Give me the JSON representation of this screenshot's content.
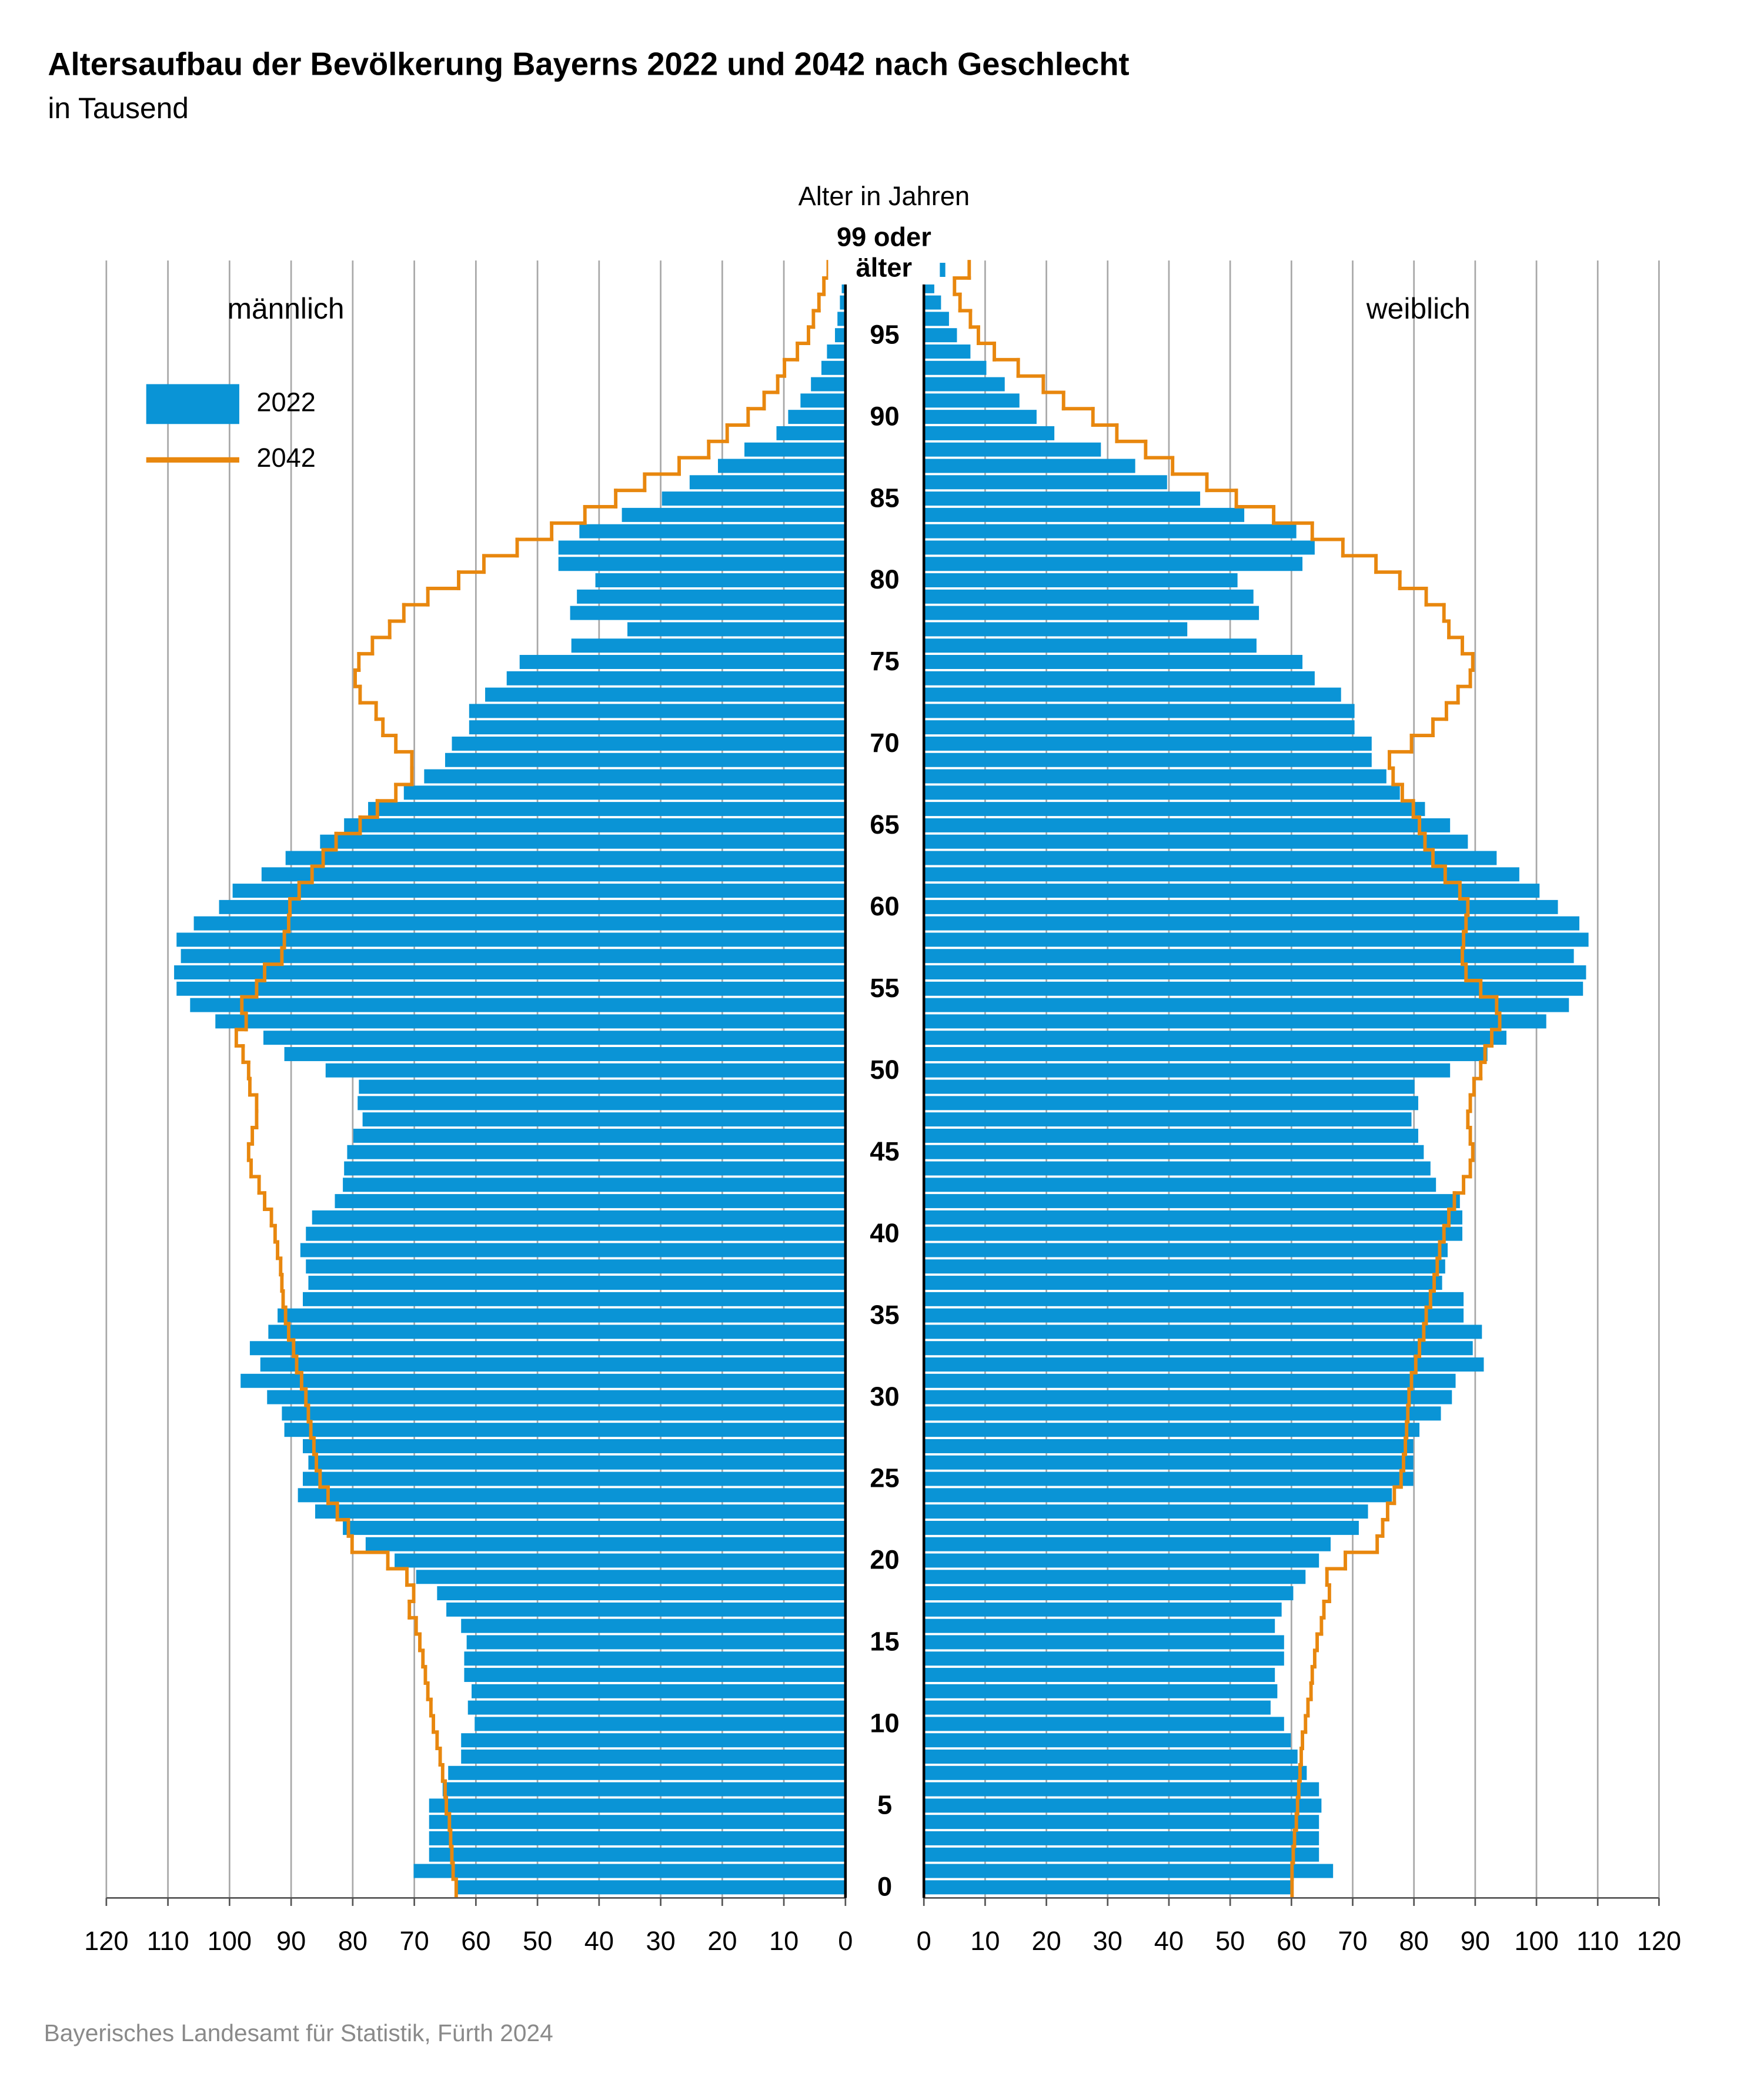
{
  "chart_data": {
    "type": "pyramid",
    "title": "Altersaufbau der Bevölkerung Bayerns 2022 und 2042 nach Geschlecht",
    "subtitle": "in Tausend",
    "y_axis_label": "Alter in Jahren",
    "left_label": "männlich",
    "right_label": "weiblich",
    "source": "Bayerisches Landesamt für Statistik, Fürth 2024",
    "xlim": [
      0,
      120
    ],
    "xticks": [
      0,
      10,
      20,
      30,
      40,
      50,
      60,
      70,
      80,
      90,
      100,
      110,
      120
    ],
    "grid": true,
    "categories": [
      "0",
      null,
      null,
      null,
      null,
      "5",
      null,
      null,
      null,
      null,
      "10",
      null,
      null,
      null,
      null,
      "15",
      null,
      null,
      null,
      null,
      "20",
      null,
      null,
      null,
      null,
      "25",
      null,
      null,
      null,
      null,
      "30",
      null,
      null,
      null,
      null,
      "35",
      null,
      null,
      null,
      null,
      "40",
      null,
      null,
      null,
      null,
      "45",
      null,
      null,
      null,
      null,
      "50",
      null,
      null,
      null,
      null,
      "55",
      null,
      null,
      null,
      null,
      "60",
      null,
      null,
      null,
      null,
      "65",
      null,
      null,
      null,
      null,
      "70",
      null,
      null,
      null,
      null,
      "75",
      null,
      null,
      null,
      null,
      "80",
      null,
      null,
      null,
      null,
      "85",
      null,
      null,
      null,
      null,
      "90",
      null,
      null,
      null,
      null,
      "95",
      null,
      null,
      null,
      "99 oder älter"
    ],
    "series": [
      {
        "name": "2022",
        "style": "bar",
        "color": "#0a94d6",
        "male": [
          63.2,
          70.1,
          67.6,
          67.6,
          67.6,
          67.6,
          65.4,
          64.5,
          62.4,
          62.4,
          60.2,
          61.3,
          60.7,
          61.9,
          61.9,
          61.5,
          62.4,
          64.8,
          66.3,
          69.7,
          73.2,
          77.9,
          81.6,
          86.1,
          88.9,
          88.1,
          87.2,
          88.1,
          91.1,
          91.5,
          93.9,
          98.2,
          95.0,
          96.7,
          93.7,
          92.2,
          88.1,
          87.2,
          87.6,
          88.5,
          87.6,
          86.6,
          82.9,
          81.6,
          81.4,
          80.9,
          79.9,
          78.4,
          79.2,
          79.0,
          84.4,
          91.1,
          94.5,
          102.3,
          106.4,
          108.6,
          109.0,
          107.9,
          108.6,
          105.8,
          101.7,
          99.5,
          94.8,
          90.9,
          85.3,
          81.4,
          77.5,
          71.7,
          68.4,
          65.0,
          63.9,
          61.1,
          61.1,
          58.5,
          55.0,
          52.9,
          44.5,
          35.4,
          44.7,
          43.6,
          40.6,
          46.6,
          46.6,
          43.2,
          36.3,
          29.8,
          25.3,
          20.7,
          16.4,
          11.2,
          9.3,
          7.3,
          5.6,
          3.9,
          3.0,
          1.7,
          1.3,
          0.9,
          0.6,
          0.9
        ],
        "female": [
          60.3,
          66.8,
          64.5,
          64.5,
          64.5,
          64.9,
          64.5,
          62.5,
          61.0,
          59.9,
          58.8,
          56.6,
          57.7,
          57.3,
          58.8,
          58.8,
          57.3,
          58.4,
          60.3,
          62.3,
          64.5,
          66.4,
          71.0,
          72.5,
          76.4,
          79.9,
          79.9,
          79.9,
          80.9,
          84.4,
          86.2,
          86.8,
          91.4,
          89.6,
          91.1,
          88.1,
          88.1,
          84.6,
          85.1,
          85.5,
          87.9,
          87.9,
          87.5,
          83.6,
          82.7,
          81.6,
          80.7,
          79.6,
          80.7,
          80.1,
          85.9,
          92.0,
          95.1,
          101.6,
          105.3,
          107.6,
          108.1,
          106.1,
          108.5,
          107.0,
          103.5,
          100.5,
          97.2,
          93.5,
          88.8,
          85.9,
          81.8,
          77.7,
          75.5,
          73.1,
          73.1,
          70.3,
          70.3,
          68.1,
          63.8,
          61.8,
          54.3,
          43.0,
          54.7,
          53.8,
          51.2,
          61.8,
          63.8,
          60.8,
          52.3,
          45.1,
          39.7,
          34.5,
          28.9,
          21.3,
          18.4,
          15.6,
          13.2,
          10.2,
          7.6,
          5.4,
          4.1,
          2.8,
          1.7,
          3.5
        ]
      },
      {
        "name": "2042",
        "style": "step",
        "color": "#e8870e",
        "male": [
          63.2,
          63.7,
          63.9,
          64.1,
          64.3,
          64.8,
          65.0,
          65.4,
          65.8,
          66.3,
          66.9,
          67.3,
          67.8,
          68.2,
          68.6,
          69.1,
          69.7,
          70.8,
          70.1,
          71.2,
          74.3,
          80.1,
          80.7,
          82.5,
          84.0,
          85.3,
          85.9,
          86.3,
          86.8,
          87.2,
          87.6,
          88.3,
          89.1,
          89.6,
          90.4,
          90.9,
          91.3,
          91.5,
          91.7,
          92.2,
          92.6,
          93.2,
          94.3,
          95.2,
          96.5,
          96.9,
          96.3,
          95.6,
          95.6,
          96.7,
          96.9,
          97.8,
          98.9,
          97.3,
          98.0,
          95.6,
          94.3,
          91.5,
          91.1,
          90.4,
          90.2,
          88.7,
          86.6,
          84.8,
          82.7,
          78.8,
          76.0,
          73.0,
          70.4,
          70.4,
          73.0,
          75.1,
          76.2,
          78.8,
          79.6,
          79.0,
          76.8,
          74.0,
          71.7,
          67.8,
          62.8,
          58.7,
          53.3,
          47.7,
          42.3,
          37.3,
          32.6,
          27.0,
          22.2,
          19.2,
          15.8,
          13.2,
          11.0,
          9.9,
          7.8,
          6.0,
          5.2,
          4.3,
          3.5,
          2.8
        ],
        "female": [
          60.1,
          60.1,
          60.3,
          60.5,
          60.8,
          61.0,
          61.2,
          61.4,
          61.6,
          61.8,
          62.3,
          62.7,
          63.2,
          63.4,
          63.8,
          64.2,
          64.9,
          65.3,
          66.2,
          65.8,
          68.8,
          74.0,
          74.9,
          75.7,
          76.8,
          77.9,
          78.3,
          78.6,
          78.8,
          79.0,
          79.2,
          79.6,
          80.3,
          80.9,
          81.6,
          82.0,
          82.7,
          83.3,
          83.8,
          84.2,
          84.9,
          85.7,
          86.6,
          88.1,
          89.2,
          89.6,
          89.2,
          88.8,
          89.2,
          89.8,
          90.9,
          91.6,
          92.7,
          94.0,
          93.5,
          90.9,
          88.5,
          87.9,
          88.1,
          88.5,
          88.8,
          87.5,
          85.1,
          83.1,
          81.8,
          80.9,
          79.9,
          78.1,
          76.6,
          76.0,
          79.6,
          83.1,
          85.3,
          87.2,
          89.2,
          89.6,
          87.9,
          85.7,
          84.9,
          82.0,
          77.7,
          73.8,
          68.4,
          63.4,
          57.1,
          51.0,
          46.2,
          40.6,
          36.2,
          31.5,
          27.6,
          22.8,
          19.5,
          15.4,
          11.5,
          8.9,
          7.6,
          5.9,
          5.0,
          7.4
        ]
      }
    ]
  }
}
